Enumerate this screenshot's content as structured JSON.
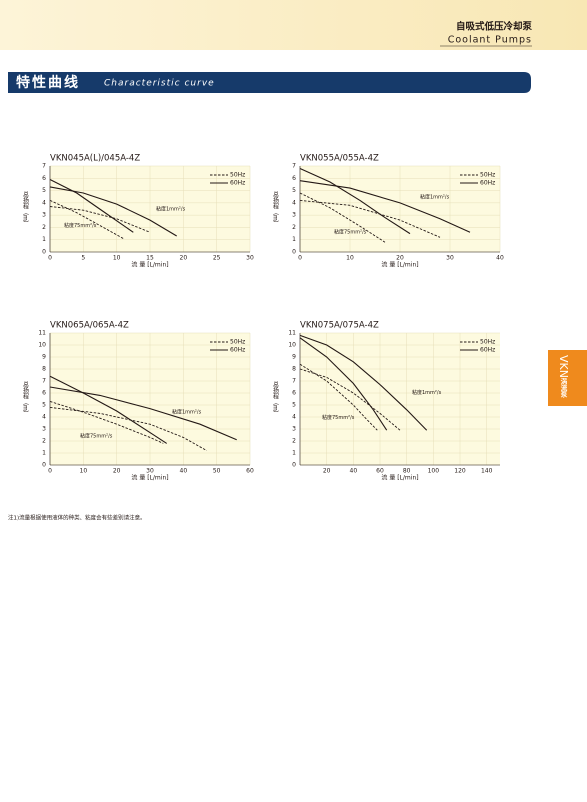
{
  "header": {
    "title": "自吸式低压冷却泵",
    "subtitle": "Coolant Pumps"
  },
  "section": {
    "title": "特性曲线",
    "subtitle": "Characteristic curve"
  },
  "side_tab": {
    "title": "VKN",
    "subtitle": "涡流泵"
  },
  "footnote": "注1)流量根据使用液体的种类、粘度会有些差别请注意。",
  "chart_data": [
    {
      "type": "line",
      "title": "VKN045A(L)/045A-4Z",
      "x_label": "流 量 [L/min]",
      "y_label": "总扬程（m）",
      "xlim": [
        0,
        30
      ],
      "xticks": [
        0,
        5,
        10,
        15,
        20,
        25,
        30
      ],
      "ylim": [
        0,
        7
      ],
      "yticks": [
        0,
        1,
        2,
        3,
        4,
        5,
        6,
        7
      ],
      "grid": true,
      "legend": "upper right",
      "series": [
        {
          "name": "60Hz",
          "viscosity": "粘度1mm²/s",
          "dashed": false,
          "color": "#231815",
          "x": [
            0,
            5,
            10,
            15,
            19
          ],
          "values": [
            5.3,
            4.8,
            3.9,
            2.6,
            1.3
          ]
        },
        {
          "name": "60Hz",
          "viscosity": "粘度75mm²/s",
          "dashed": false,
          "color": "#231815",
          "x": [
            0,
            4,
            8,
            12.5
          ],
          "values": [
            5.9,
            4.8,
            3.3,
            1.6
          ]
        },
        {
          "name": "50Hz",
          "viscosity": "粘度1mm²/s",
          "dashed": true,
          "color": "#231815",
          "x": [
            0,
            5,
            10,
            15
          ],
          "values": [
            3.7,
            3.4,
            2.7,
            1.6
          ]
        },
        {
          "name": "50Hz",
          "viscosity": "粘度75mm²/s",
          "dashed": true,
          "color": "#231815",
          "x": [
            0,
            4,
            8,
            11
          ],
          "values": [
            4.2,
            3.2,
            2.0,
            1.1
          ]
        }
      ]
    },
    {
      "type": "line",
      "title": "VKN055A/055A-4Z",
      "x_label": "流 量 [L/min]",
      "y_label": "总扬程（m）",
      "xlim": [
        0,
        40
      ],
      "xticks": [
        0,
        10,
        20,
        30,
        40
      ],
      "ylim": [
        0,
        7
      ],
      "yticks": [
        0,
        1,
        2,
        3,
        4,
        5,
        6,
        7
      ],
      "grid": true,
      "legend": "upper right",
      "series": [
        {
          "name": "60Hz",
          "viscosity": "粘度1mm²/s",
          "dashed": false,
          "color": "#231815",
          "x": [
            0,
            10,
            20,
            28,
            34
          ],
          "values": [
            5.8,
            5.2,
            4.0,
            2.7,
            1.6
          ]
        },
        {
          "name": "60Hz",
          "viscosity": "粘度75mm²/s",
          "dashed": false,
          "color": "#231815",
          "x": [
            0,
            6,
            12,
            17,
            22
          ],
          "values": [
            6.8,
            5.7,
            4.2,
            2.8,
            1.5
          ]
        },
        {
          "name": "50Hz",
          "viscosity": "粘度1mm²/s",
          "dashed": true,
          "color": "#231815",
          "x": [
            0,
            10,
            20,
            28
          ],
          "values": [
            4.2,
            3.8,
            2.6,
            1.2
          ]
        },
        {
          "name": "50Hz",
          "viscosity": "粘度75mm²/s",
          "dashed": true,
          "color": "#231815",
          "x": [
            0,
            6,
            12,
            17
          ],
          "values": [
            4.8,
            3.6,
            2.1,
            0.8
          ]
        }
      ]
    },
    {
      "type": "line",
      "title": "VKN065A/065A-4Z",
      "x_label": "流 量 [L/min]",
      "y_label": "总扬程（m）",
      "xlim": [
        0,
        60
      ],
      "xticks": [
        0,
        10,
        20,
        30,
        40,
        50,
        60
      ],
      "ylim": [
        0,
        11
      ],
      "yticks": [
        0,
        1,
        2,
        3,
        4,
        5,
        6,
        7,
        8,
        9,
        10,
        11
      ],
      "grid": true,
      "legend": "upper right",
      "series": [
        {
          "name": "60Hz",
          "viscosity": "粘度1mm²/s",
          "dashed": false,
          "color": "#231815",
          "x": [
            0,
            15,
            30,
            45,
            56
          ],
          "values": [
            6.5,
            5.8,
            4.7,
            3.4,
            2.1
          ]
        },
        {
          "name": "60Hz",
          "viscosity": "粘度75mm²/s",
          "dashed": false,
          "color": "#231815",
          "x": [
            0,
            10,
            20,
            30,
            35
          ],
          "values": [
            7.4,
            6.0,
            4.5,
            2.7,
            1.8
          ]
        },
        {
          "name": "50Hz",
          "viscosity": "粘度1mm²/s",
          "dashed": true,
          "color": "#231815",
          "x": [
            0,
            15,
            30,
            40,
            47
          ],
          "values": [
            4.8,
            4.3,
            3.4,
            2.3,
            1.2
          ]
        },
        {
          "name": "50Hz",
          "viscosity": "粘度75mm²/s",
          "dashed": true,
          "color": "#231815",
          "x": [
            0,
            10,
            20,
            30,
            34
          ],
          "values": [
            5.3,
            4.4,
            3.4,
            2.3,
            1.8
          ]
        }
      ]
    },
    {
      "type": "line",
      "title": "VKN075A/075A-4Z",
      "x_label": "流 量 [L/min]",
      "y_label": "总扬程（m）",
      "xlim": [
        0,
        150
      ],
      "xticks": [
        20,
        40,
        60,
        80,
        100,
        120,
        140
      ],
      "ylim": [
        0,
        11
      ],
      "yticks": [
        0,
        1,
        2,
        3,
        4,
        5,
        6,
        7,
        8,
        9,
        10,
        11
      ],
      "grid": true,
      "legend": "upper right",
      "series": [
        {
          "name": "60Hz",
          "viscosity": "粘度1mm²/s",
          "dashed": false,
          "color": "#231815",
          "x": [
            0,
            20,
            40,
            60,
            80,
            95
          ],
          "values": [
            10.8,
            10.0,
            8.6,
            6.7,
            4.6,
            2.9
          ]
        },
        {
          "name": "60Hz",
          "viscosity": "粘度75mm²/s",
          "dashed": false,
          "color": "#231815",
          "x": [
            0,
            20,
            40,
            55,
            65
          ],
          "values": [
            10.6,
            9.0,
            6.8,
            4.6,
            2.9
          ]
        },
        {
          "name": "50Hz",
          "viscosity": "粘度1mm²/s",
          "dashed": true,
          "color": "#231815",
          "x": [
            0,
            20,
            40,
            60,
            75
          ],
          "values": [
            8.0,
            7.3,
            6.0,
            4.3,
            2.9
          ]
        },
        {
          "name": "50Hz",
          "viscosity": "粘度75mm²/s",
          "dashed": true,
          "color": "#231815",
          "x": [
            0,
            20,
            40,
            50,
            58
          ],
          "values": [
            8.4,
            7.0,
            5.0,
            3.8,
            2.9
          ]
        }
      ]
    }
  ]
}
